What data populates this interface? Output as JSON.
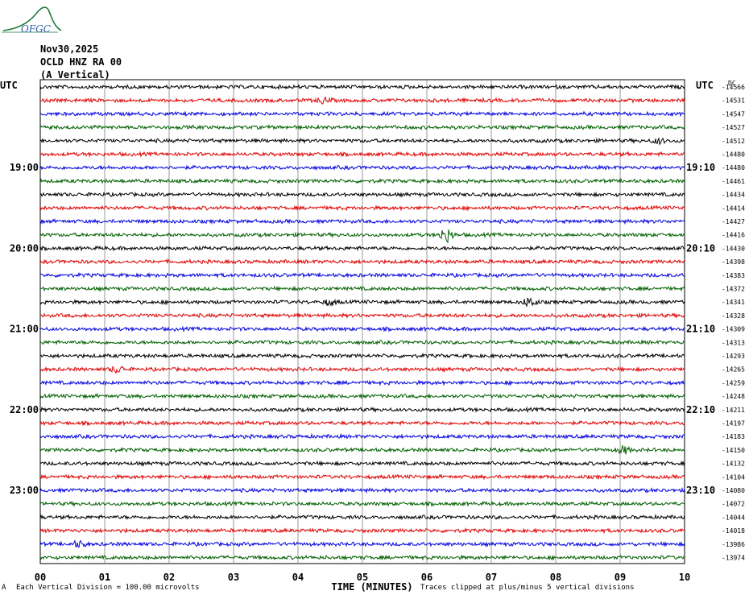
{
  "logo_text": "OFGC",
  "header": {
    "date": "Nov30,2025",
    "station": "OCLD HNZ RA 00",
    "component": "(A Vertical)"
  },
  "left_tz": "UTC",
  "right_tz": "UTC",
  "dc_label": "DC",
  "footer": {
    "scale_prefix": "A",
    "scale_note": "Each Vertical Division =  100.00 microvolts",
    "clip_note": "Traces clipped at plus/minus 5 vertical divisions"
  },
  "colors": {
    "trace_cycle": [
      "#000000",
      "#e00000",
      "#0000e0",
      "#006000"
    ],
    "grid": "#808080",
    "logo": "#1d7a3a"
  },
  "chart_data": {
    "type": "line",
    "title": "",
    "xlabel": "TIME (MINUTES)",
    "ylabel": "",
    "x_ticks": [
      "00",
      "01",
      "02",
      "03",
      "04",
      "05",
      "06",
      "07",
      "08",
      "09",
      "10"
    ],
    "xlim": [
      0,
      10
    ],
    "trace_count": 36,
    "left_hour_labels": [
      {
        "trace_index": 6,
        "label": "19:00"
      },
      {
        "trace_index": 12,
        "label": "20:00"
      },
      {
        "trace_index": 18,
        "label": "21:00"
      },
      {
        "trace_index": 24,
        "label": "22:00"
      },
      {
        "trace_index": 30,
        "label": "23:00"
      }
    ],
    "right_hour_labels": [
      {
        "trace_index": 6,
        "label": "19:10"
      },
      {
        "trace_index": 12,
        "label": "20:10"
      },
      {
        "trace_index": 18,
        "label": "21:10"
      },
      {
        "trace_index": 24,
        "label": "22:10"
      },
      {
        "trace_index": 30,
        "label": "23:10"
      }
    ],
    "dc_offsets": [
      -14566,
      -14531,
      -14547,
      -14527,
      -14512,
      -14480,
      -14480,
      -14461,
      -14434,
      -14414,
      -14427,
      -14416,
      -14430,
      -14398,
      -14383,
      -14372,
      -14341,
      -14328,
      -14309,
      -14313,
      -14293,
      -14265,
      -14259,
      -14248,
      -14211,
      -14197,
      -14183,
      -14150,
      -14132,
      -14104,
      -14080,
      -14072,
      -14044,
      -14018,
      -13986,
      -13974
    ],
    "events": [
      {
        "trace_index": 11,
        "minute": 6.3,
        "amplitude": 1.8
      },
      {
        "trace_index": 16,
        "minute": 7.6,
        "amplitude": 1.2
      },
      {
        "trace_index": 16,
        "minute": 4.5,
        "amplitude": 0.7
      },
      {
        "trace_index": 27,
        "minute": 9.05,
        "amplitude": 0.9
      },
      {
        "trace_index": 21,
        "minute": 1.2,
        "amplitude": 0.8
      },
      {
        "trace_index": 1,
        "minute": 4.4,
        "amplitude": 0.7
      },
      {
        "trace_index": 4,
        "minute": 9.6,
        "amplitude": 0.6
      },
      {
        "trace_index": 34,
        "minute": 0.6,
        "amplitude": 0.7
      }
    ]
  }
}
